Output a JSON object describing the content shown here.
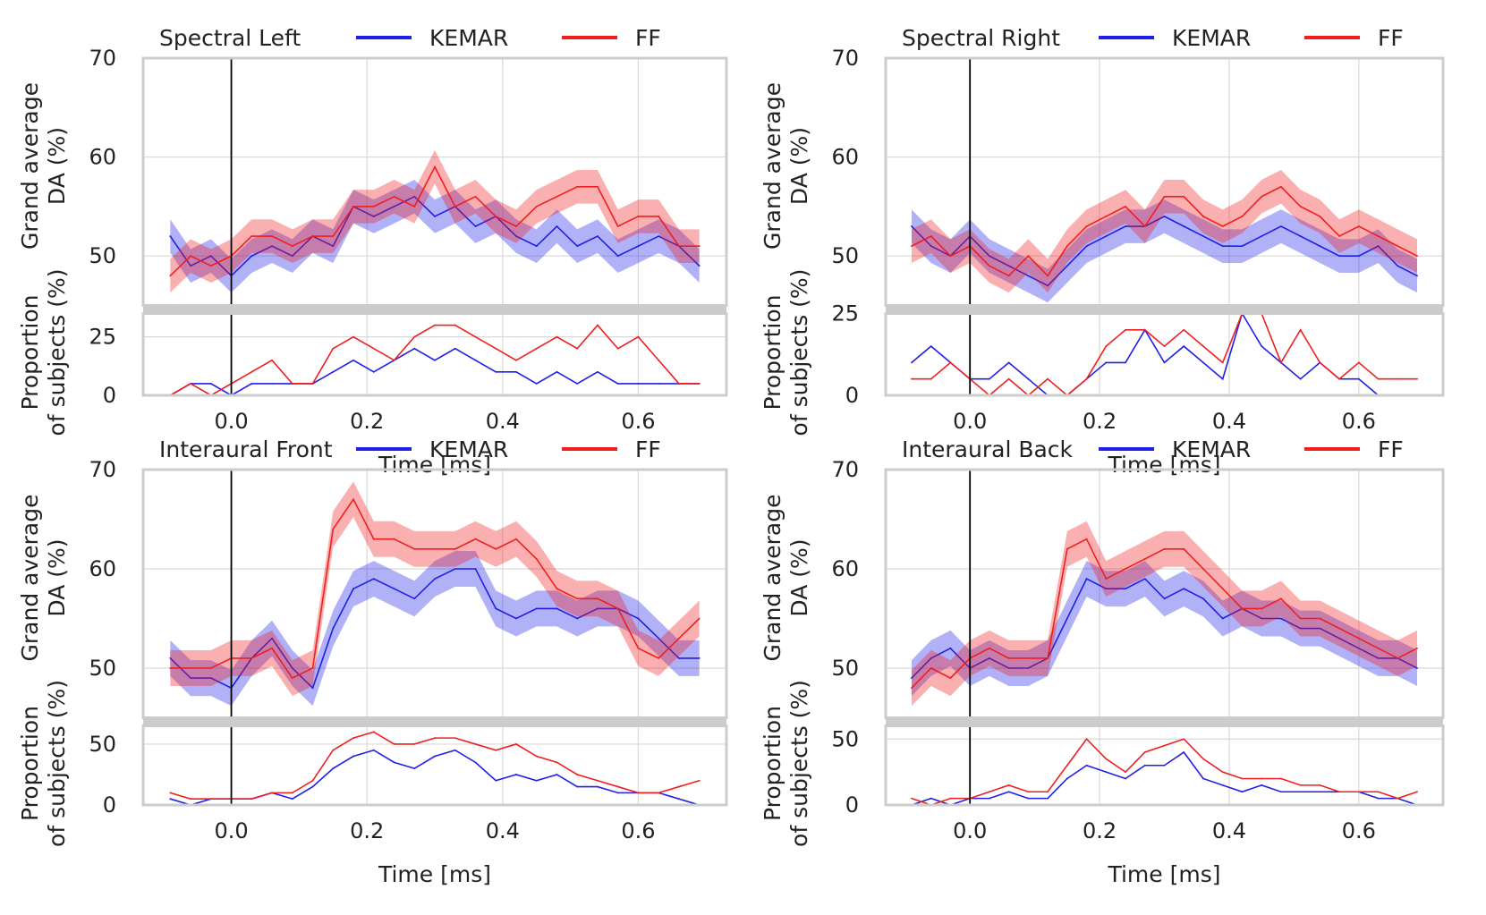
{
  "colors": {
    "kemar": "#1f1fe8",
    "ff": "#f01e1e",
    "grid": "#d9d9d9",
    "frame": "#cccccc",
    "onset": "#000000"
  },
  "common": {
    "xlabel": "Time [ms]",
    "ylabel_top": [
      "Grand average",
      "DA (%)"
    ],
    "ylabel_bottom": [
      "Proportion",
      "of subjects (%)"
    ],
    "xticks": [
      0.0,
      0.2,
      0.4,
      0.6
    ],
    "xtick_labels": [
      "0.0",
      "0.2",
      "0.4",
      "0.6"
    ],
    "xlim": [
      -0.13,
      0.73
    ],
    "legend": [
      "KEMAR",
      "FF"
    ],
    "onset_x": 0.0
  },
  "chart_data": [
    {
      "type": "line",
      "title": "Spectral Left",
      "top": {
        "ylim": [
          45,
          70
        ],
        "yticks": [
          50,
          60,
          70
        ],
        "band": 1.7,
        "x": [
          -0.09,
          -0.06,
          -0.03,
          0.0,
          0.03,
          0.06,
          0.09,
          0.12,
          0.15,
          0.18,
          0.21,
          0.24,
          0.27,
          0.3,
          0.33,
          0.36,
          0.39,
          0.42,
          0.45,
          0.48,
          0.51,
          0.54,
          0.57,
          0.6,
          0.63,
          0.66,
          0.69
        ],
        "series": [
          {
            "name": "KEMAR",
            "values": [
              52,
              49,
              50,
              48,
              50,
              51,
              50,
              52,
              51,
              55,
              54,
              55,
              56,
              54,
              55,
              53,
              54,
              52,
              51,
              53,
              51,
              52,
              50,
              51,
              52,
              51,
              49
            ]
          },
          {
            "name": "FF",
            "values": [
              48,
              50,
              49,
              50,
              52,
              52,
              51,
              52,
              52,
              55,
              55,
              56,
              55,
              59,
              55,
              56,
              54,
              53,
              55,
              56,
              57,
              57,
              53,
              54,
              54,
              51,
              51
            ]
          }
        ]
      },
      "bottom": {
        "ylim": [
          0,
          35
        ],
        "yticks": [
          0,
          25
        ],
        "x": [
          -0.09,
          -0.06,
          -0.03,
          0.0,
          0.03,
          0.06,
          0.09,
          0.12,
          0.15,
          0.18,
          0.21,
          0.24,
          0.27,
          0.3,
          0.33,
          0.36,
          0.39,
          0.42,
          0.45,
          0.48,
          0.51,
          0.54,
          0.57,
          0.6,
          0.63,
          0.66,
          0.69
        ],
        "series": [
          {
            "name": "KEMAR",
            "values": [
              0,
              5,
              5,
              0,
              5,
              5,
              5,
              5,
              10,
              15,
              10,
              15,
              20,
              15,
              20,
              15,
              10,
              10,
              5,
              10,
              5,
              10,
              5,
              5,
              5,
              5,
              5
            ]
          },
          {
            "name": "FF",
            "values": [
              0,
              5,
              0,
              5,
              10,
              15,
              5,
              5,
              20,
              25,
              20,
              15,
              25,
              30,
              30,
              25,
              20,
              15,
              20,
              25,
              20,
              30,
              20,
              25,
              15,
              5,
              5
            ]
          }
        ]
      }
    },
    {
      "type": "line",
      "title": "Spectral Right",
      "top": {
        "ylim": [
          45,
          70
        ],
        "yticks": [
          50,
          60,
          70
        ],
        "band": 1.7,
        "x": [
          -0.09,
          -0.06,
          -0.03,
          0.0,
          0.03,
          0.06,
          0.09,
          0.12,
          0.15,
          0.18,
          0.21,
          0.24,
          0.27,
          0.3,
          0.33,
          0.36,
          0.39,
          0.42,
          0.45,
          0.48,
          0.51,
          0.54,
          0.57,
          0.6,
          0.63,
          0.66,
          0.69
        ],
        "series": [
          {
            "name": "KEMAR",
            "values": [
              53,
              51,
              50,
              52,
              50,
              49,
              48,
              47,
              49,
              51,
              52,
              53,
              53,
              54,
              53,
              52,
              51,
              51,
              52,
              53,
              52,
              51,
              50,
              50,
              51,
              49,
              48
            ]
          },
          {
            "name": "FF",
            "values": [
              51,
              52,
              50,
              51,
              49,
              48,
              50,
              48,
              51,
              53,
              54,
              55,
              53,
              56,
              56,
              54,
              53,
              54,
              56,
              57,
              55,
              54,
              52,
              53,
              52,
              51,
              50
            ]
          }
        ]
      },
      "bottom": {
        "ylim": [
          0,
          25
        ],
        "yticks": [
          0,
          25
        ],
        "x": [
          -0.09,
          -0.06,
          -0.03,
          0.0,
          0.03,
          0.06,
          0.09,
          0.12,
          0.15,
          0.18,
          0.21,
          0.24,
          0.27,
          0.3,
          0.33,
          0.36,
          0.39,
          0.42,
          0.45,
          0.48,
          0.51,
          0.54,
          0.57,
          0.6,
          0.63,
          0.66,
          0.69
        ],
        "series": [
          {
            "name": "KEMAR",
            "values": [
              10,
              15,
              10,
              5,
              5,
              10,
              5,
              0,
              0,
              5,
              10,
              10,
              20,
              10,
              15,
              10,
              5,
              25,
              15,
              10,
              5,
              10,
              5,
              5,
              0,
              0,
              0
            ]
          },
          {
            "name": "FF",
            "values": [
              5,
              5,
              10,
              5,
              0,
              5,
              0,
              5,
              0,
              5,
              15,
              20,
              20,
              15,
              20,
              15,
              10,
              25,
              25,
              10,
              20,
              10,
              5,
              10,
              5,
              5,
              5
            ]
          }
        ]
      }
    },
    {
      "type": "line",
      "title": "Interaural Front",
      "top": {
        "ylim": [
          45,
          70
        ],
        "yticks": [
          50,
          60,
          70
        ],
        "band": 1.8,
        "x": [
          -0.09,
          -0.06,
          -0.03,
          0.0,
          0.03,
          0.06,
          0.09,
          0.12,
          0.15,
          0.18,
          0.21,
          0.24,
          0.27,
          0.3,
          0.33,
          0.36,
          0.39,
          0.42,
          0.45,
          0.48,
          0.51,
          0.54,
          0.57,
          0.6,
          0.63,
          0.66,
          0.69
        ],
        "series": [
          {
            "name": "KEMAR",
            "values": [
              51,
              49,
              49,
              48,
              51,
              53,
              50,
              48,
              54,
              58,
              59,
              58,
              57,
              59,
              60,
              60,
              56,
              55,
              56,
              56,
              55,
              56,
              56,
              55,
              53,
              51,
              51
            ]
          },
          {
            "name": "FF",
            "values": [
              50,
              50,
              50,
              51,
              51,
              52,
              49,
              50,
              64,
              67,
              63,
              63,
              62,
              62,
              62,
              63,
              62,
              63,
              61,
              58,
              57,
              57,
              56,
              52,
              51,
              53,
              55
            ]
          }
        ]
      },
      "bottom": {
        "ylim": [
          0,
          65
        ],
        "yticks": [
          0,
          50
        ],
        "x": [
          -0.09,
          -0.06,
          -0.03,
          0.0,
          0.03,
          0.06,
          0.09,
          0.12,
          0.15,
          0.18,
          0.21,
          0.24,
          0.27,
          0.3,
          0.33,
          0.36,
          0.39,
          0.42,
          0.45,
          0.48,
          0.51,
          0.54,
          0.57,
          0.6,
          0.63,
          0.66,
          0.69
        ],
        "series": [
          {
            "name": "KEMAR",
            "values": [
              5,
              0,
              5,
              5,
              5,
              10,
              5,
              15,
              30,
              40,
              45,
              35,
              30,
              40,
              45,
              35,
              20,
              25,
              20,
              25,
              15,
              15,
              10,
              10,
              10,
              5,
              0
            ]
          },
          {
            "name": "FF",
            "values": [
              10,
              5,
              5,
              5,
              5,
              10,
              10,
              20,
              45,
              55,
              60,
              50,
              50,
              55,
              55,
              50,
              45,
              50,
              40,
              35,
              25,
              20,
              15,
              10,
              10,
              15,
              20
            ]
          }
        ]
      }
    },
    {
      "type": "line",
      "title": "Interaural Back",
      "top": {
        "ylim": [
          45,
          70
        ],
        "yticks": [
          50,
          60,
          70
        ],
        "band": 1.8,
        "x": [
          -0.09,
          -0.06,
          -0.03,
          0.0,
          0.03,
          0.06,
          0.09,
          0.12,
          0.15,
          0.18,
          0.21,
          0.24,
          0.27,
          0.3,
          0.33,
          0.36,
          0.39,
          0.42,
          0.45,
          0.48,
          0.51,
          0.54,
          0.57,
          0.6,
          0.63,
          0.66,
          0.69
        ],
        "series": [
          {
            "name": "KEMAR",
            "values": [
              49,
              51,
              52,
              50,
              51,
              50,
              50,
              51,
              55,
              59,
              58,
              58,
              59,
              57,
              58,
              57,
              55,
              56,
              55,
              55,
              54,
              54,
              53,
              52,
              51,
              51,
              50
            ]
          },
          {
            "name": "FF",
            "values": [
              48,
              50,
              49,
              51,
              52,
              51,
              51,
              51,
              62,
              63,
              59,
              60,
              61,
              62,
              62,
              60,
              58,
              56,
              56,
              57,
              55,
              55,
              54,
              53,
              52,
              51,
              52
            ]
          }
        ]
      },
      "bottom": {
        "ylim": [
          0,
          60
        ],
        "yticks": [
          0,
          50
        ],
        "x": [
          -0.09,
          -0.06,
          -0.03,
          0.0,
          0.03,
          0.06,
          0.09,
          0.12,
          0.15,
          0.18,
          0.21,
          0.24,
          0.27,
          0.3,
          0.33,
          0.36,
          0.39,
          0.42,
          0.45,
          0.48,
          0.51,
          0.54,
          0.57,
          0.6,
          0.63,
          0.66,
          0.69
        ],
        "series": [
          {
            "name": "KEMAR",
            "values": [
              0,
              5,
              0,
              5,
              5,
              10,
              5,
              5,
              20,
              30,
              25,
              20,
              30,
              30,
              40,
              20,
              15,
              10,
              15,
              10,
              10,
              10,
              10,
              10,
              5,
              5,
              0
            ]
          },
          {
            "name": "FF",
            "values": [
              5,
              0,
              5,
              5,
              10,
              15,
              10,
              10,
              30,
              50,
              35,
              25,
              40,
              45,
              50,
              35,
              25,
              20,
              20,
              20,
              15,
              15,
              10,
              10,
              10,
              5,
              10
            ]
          }
        ]
      }
    }
  ]
}
